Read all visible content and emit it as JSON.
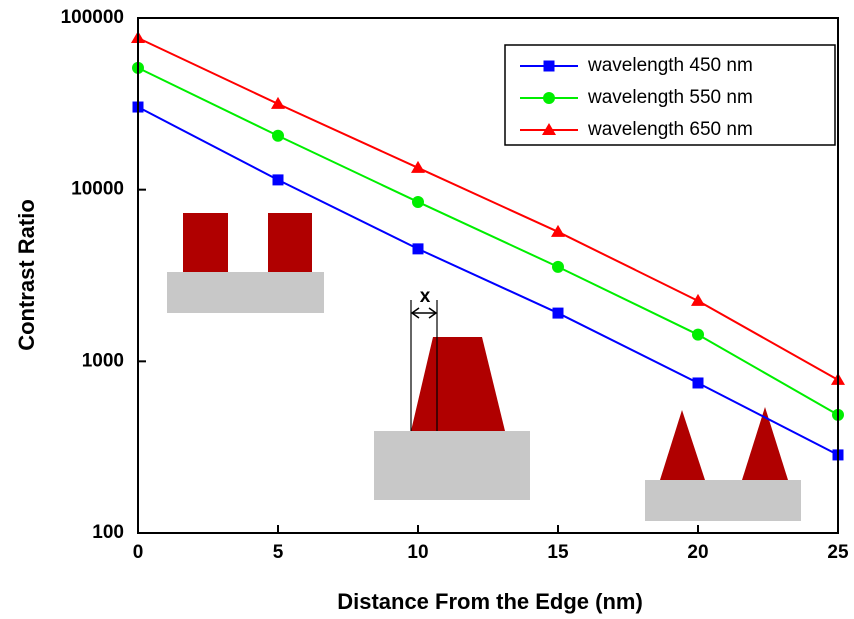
{
  "chart_data": {
    "type": "line",
    "x_label": "Distance From the Edge (nm)",
    "y_label": "Contrast Ratio",
    "x": [
      0,
      5,
      10,
      15,
      20,
      25
    ],
    "series": [
      {
        "name": "wavelength 450 nm",
        "color": "#0000ff",
        "marker": "square",
        "values": [
          30300,
          11400,
          4520,
          1910,
          748,
          285
        ]
      },
      {
        "name": "wavelength 550 nm",
        "color": "#00ee00",
        "marker": "circle",
        "values": [
          51200,
          20600,
          8480,
          3550,
          1430,
          488
        ]
      },
      {
        "name": "wavelength 650 nm",
        "color": "#ff0000",
        "marker": "triangle",
        "values": [
          76500,
          31600,
          13400,
          5680,
          2250,
          780
        ]
      }
    ],
    "xlim": [
      0,
      25
    ],
    "xticks": [
      0,
      5,
      10,
      15,
      20,
      25
    ],
    "ylim": [
      100,
      100000
    ],
    "yticks": [
      100,
      1000,
      10000,
      100000
    ],
    "y_scale": "log",
    "legend": "upper right",
    "annotations": [
      "x"
    ]
  }
}
